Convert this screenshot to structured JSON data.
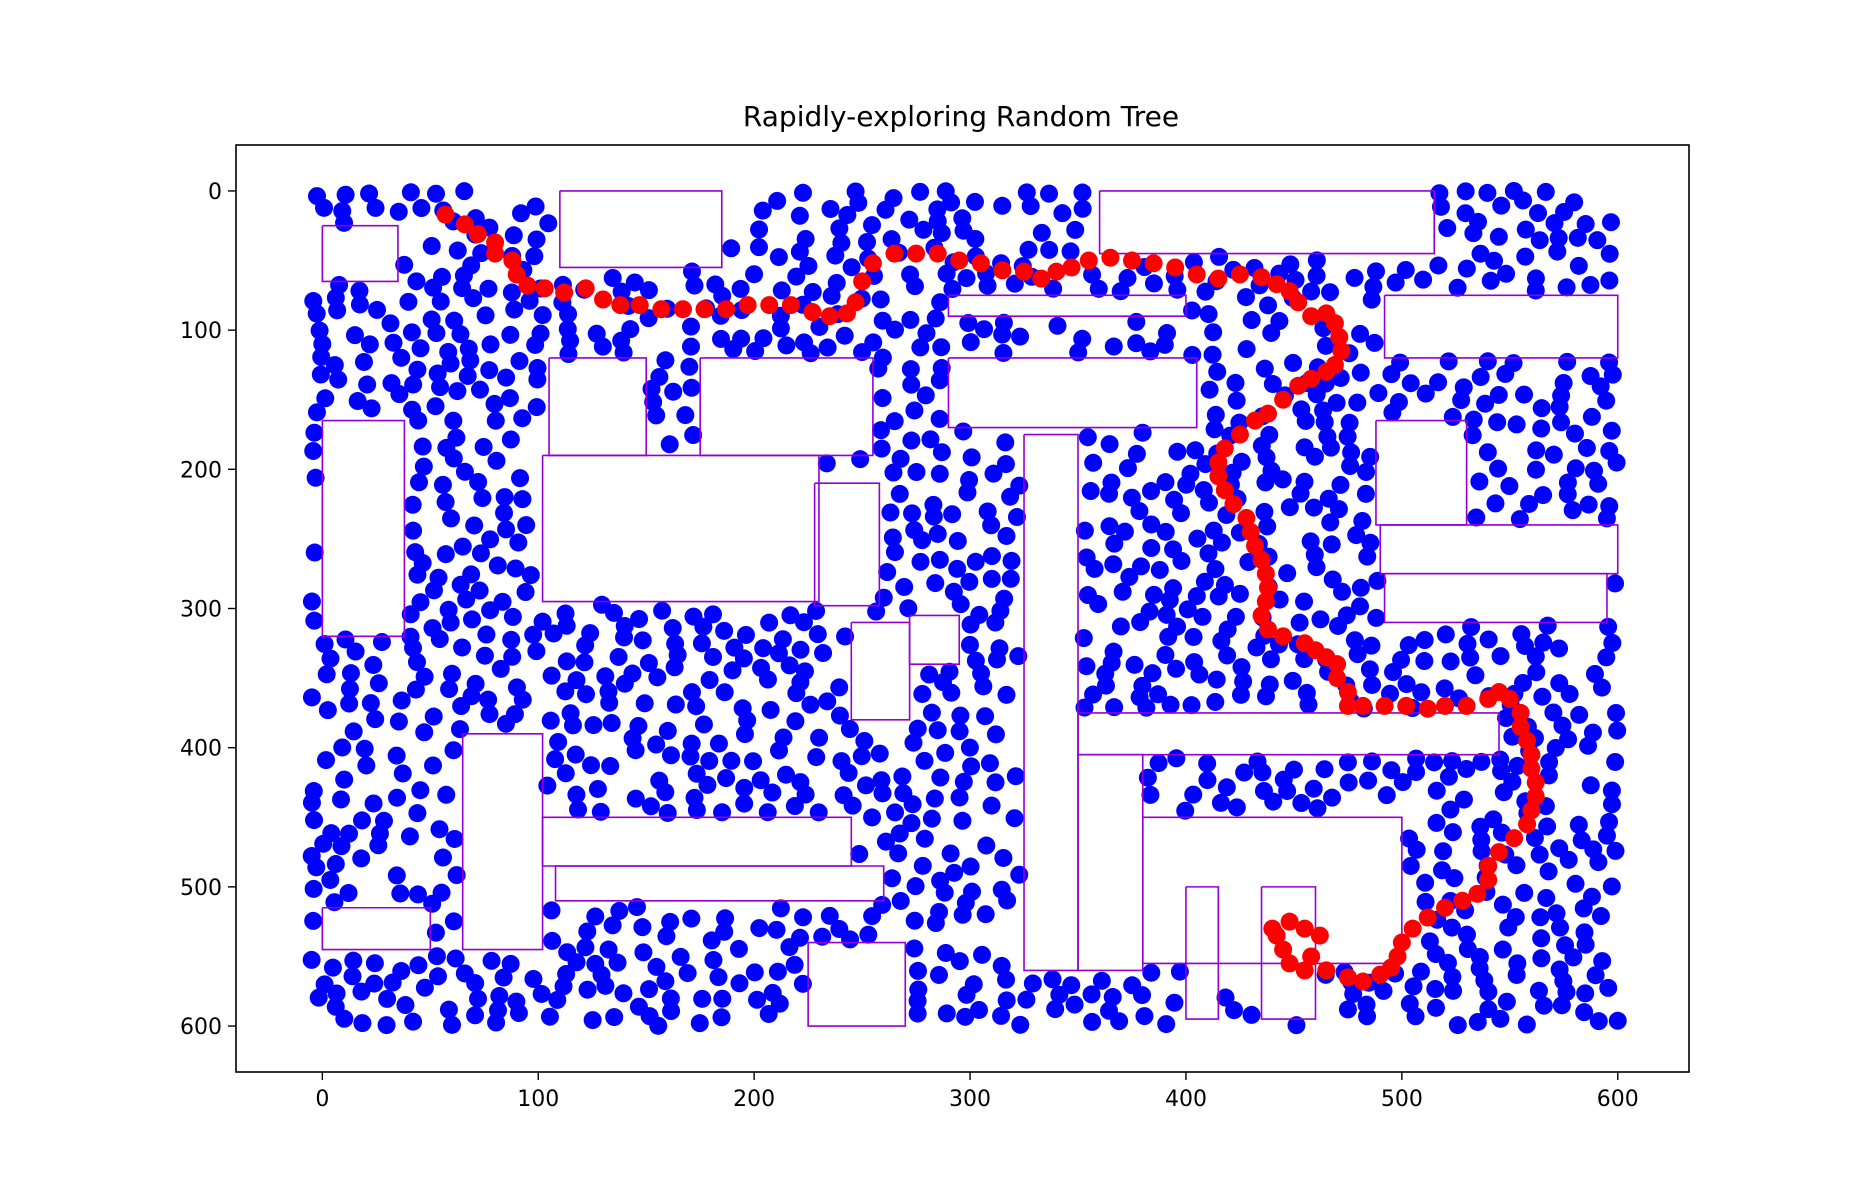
{
  "chart_data": {
    "type": "scatter",
    "title": "Rapidly-exploring Random Tree",
    "xlabel": "",
    "ylabel": "",
    "xlim": [
      -40,
      633
    ],
    "ylim": [
      633,
      -33
    ],
    "y_inverted": true,
    "grid": false,
    "x_ticks": [
      0,
      100,
      200,
      300,
      400,
      500,
      600
    ],
    "y_ticks": [
      0,
      100,
      200,
      300,
      400,
      500,
      600
    ],
    "colors": {
      "tree": "#0000ff",
      "path": "#ff0000",
      "obstacles": "#9400d3"
    },
    "obstacles": [
      [
        [
          0,
          25
        ],
        [
          35,
          25
        ],
        [
          35,
          65
        ],
        [
          0,
          65
        ],
        [
          0,
          25
        ]
      ],
      [
        [
          0,
          165
        ],
        [
          38,
          165
        ],
        [
          38,
          320
        ],
        [
          0,
          320
        ],
        [
          0,
          165
        ]
      ],
      [
        [
          0,
          515
        ],
        [
          50,
          515
        ],
        [
          50,
          545
        ],
        [
          0,
          545
        ],
        [
          0,
          515
        ]
      ],
      [
        [
          110,
          0
        ],
        [
          185,
          0
        ],
        [
          185,
          55
        ],
        [
          110,
          55
        ],
        [
          110,
          0
        ]
      ],
      [
        [
          105,
          120
        ],
        [
          150,
          120
        ],
        [
          150,
          190
        ],
        [
          105,
          190
        ],
        [
          105,
          120
        ]
      ],
      [
        [
          175,
          120
        ],
        [
          255,
          120
        ],
        [
          255,
          190
        ],
        [
          175,
          190
        ],
        [
          175,
          120
        ]
      ],
      [
        [
          102,
          190
        ],
        [
          230,
          190
        ],
        [
          230,
          295
        ],
        [
          102,
          295
        ],
        [
          102,
          190
        ]
      ],
      [
        [
          228,
          210
        ],
        [
          258,
          210
        ],
        [
          258,
          298
        ],
        [
          228,
          298
        ],
        [
          228,
          210
        ]
      ],
      [
        [
          290,
          120
        ],
        [
          405,
          120
        ],
        [
          405,
          170
        ],
        [
          290,
          170
        ],
        [
          290,
          120
        ]
      ],
      [
        [
          290,
          75
        ],
        [
          400,
          75
        ],
        [
          400,
          90
        ],
        [
          290,
          90
        ],
        [
          290,
          75
        ]
      ],
      [
        [
          360,
          0
        ],
        [
          515,
          0
        ],
        [
          515,
          45
        ],
        [
          360,
          45
        ],
        [
          360,
          0
        ]
      ],
      [
        [
          492,
          75
        ],
        [
          600,
          75
        ],
        [
          600,
          120
        ],
        [
          492,
          120
        ],
        [
          492,
          75
        ]
      ],
      [
        [
          488,
          165
        ],
        [
          530,
          165
        ],
        [
          530,
          240
        ],
        [
          488,
          240
        ],
        [
          488,
          165
        ]
      ],
      [
        [
          490,
          240
        ],
        [
          600,
          240
        ],
        [
          600,
          275
        ],
        [
          490,
          275
        ],
        [
          490,
          240
        ]
      ],
      [
        [
          325,
          175
        ],
        [
          350,
          175
        ],
        [
          350,
          560
        ],
        [
          325,
          560
        ],
        [
          325,
          175
        ]
      ],
      [
        [
          272,
          305
        ],
        [
          295,
          305
        ],
        [
          295,
          340
        ],
        [
          272,
          340
        ],
        [
          272,
          305
        ]
      ],
      [
        [
          350,
          375
        ],
        [
          545,
          375
        ],
        [
          545,
          405
        ],
        [
          350,
          405
        ],
        [
          350,
          375
        ]
      ],
      [
        [
          350,
          405
        ],
        [
          380,
          405
        ],
        [
          380,
          560
        ],
        [
          350,
          560
        ],
        [
          350,
          405
        ]
      ],
      [
        [
          380,
          450
        ],
        [
          500,
          450
        ],
        [
          500,
          555
        ],
        [
          380,
          555
        ],
        [
          380,
          450
        ]
      ],
      [
        [
          400,
          500
        ],
        [
          415,
          500
        ],
        [
          415,
          595
        ],
        [
          400,
          595
        ],
        [
          400,
          500
        ]
      ],
      [
        [
          435,
          500
        ],
        [
          460,
          500
        ],
        [
          460,
          595
        ],
        [
          435,
          595
        ],
        [
          435,
          500
        ]
      ],
      [
        [
          65,
          390
        ],
        [
          102,
          390
        ],
        [
          102,
          545
        ],
        [
          65,
          545
        ],
        [
          65,
          390
        ]
      ],
      [
        [
          102,
          450
        ],
        [
          245,
          450
        ],
        [
          245,
          485
        ],
        [
          102,
          485
        ],
        [
          102,
          450
        ]
      ],
      [
        [
          108,
          485
        ],
        [
          260,
          485
        ],
        [
          260,
          510
        ],
        [
          108,
          510
        ],
        [
          108,
          485
        ]
      ],
      [
        [
          225,
          540
        ],
        [
          270,
          540
        ],
        [
          270,
          600
        ],
        [
          225,
          600
        ],
        [
          225,
          540
        ]
      ],
      [
        [
          245,
          310
        ],
        [
          272,
          310
        ],
        [
          272,
          380
        ],
        [
          245,
          380
        ],
        [
          245,
          310
        ]
      ],
      [
        [
          492,
          275
        ],
        [
          595,
          275
        ],
        [
          595,
          310
        ],
        [
          492,
          310
        ],
        [
          492,
          275
        ]
      ]
    ],
    "path": [
      [
        57,
        17
      ],
      [
        66,
        24
      ],
      [
        72,
        31
      ],
      [
        80,
        37
      ],
      [
        80,
        45
      ],
      [
        88,
        50
      ],
      [
        90,
        60
      ],
      [
        95,
        68
      ],
      [
        103,
        70
      ],
      [
        112,
        73
      ],
      [
        122,
        70
      ],
      [
        130,
        78
      ],
      [
        138,
        82
      ],
      [
        147,
        82
      ],
      [
        157,
        85
      ],
      [
        167,
        85
      ],
      [
        177,
        85
      ],
      [
        187,
        85
      ],
      [
        197,
        82
      ],
      [
        207,
        82
      ],
      [
        217,
        82
      ],
      [
        227,
        87
      ],
      [
        235,
        90
      ],
      [
        243,
        88
      ],
      [
        247,
        80
      ],
      [
        250,
        65
      ],
      [
        255,
        52
      ],
      [
        265,
        45
      ],
      [
        275,
        45
      ],
      [
        285,
        45
      ],
      [
        295,
        50
      ],
      [
        305,
        52
      ],
      [
        315,
        57
      ],
      [
        325,
        58
      ],
      [
        333,
        63
      ],
      [
        340,
        58
      ],
      [
        347,
        55
      ],
      [
        355,
        50
      ],
      [
        365,
        48
      ],
      [
        375,
        50
      ],
      [
        385,
        52
      ],
      [
        395,
        55
      ],
      [
        405,
        60
      ],
      [
        415,
        63
      ],
      [
        425,
        60
      ],
      [
        435,
        62
      ],
      [
        442,
        67
      ],
      [
        448,
        72
      ],
      [
        452,
        80
      ],
      [
        458,
        90
      ],
      [
        465,
        88
      ],
      [
        469,
        95
      ],
      [
        471,
        105
      ],
      [
        472,
        115
      ],
      [
        469,
        125
      ],
      [
        465,
        130
      ],
      [
        458,
        135
      ],
      [
        452,
        140
      ],
      [
        445,
        150
      ],
      [
        438,
        160
      ],
      [
        432,
        165
      ],
      [
        425,
        175
      ],
      [
        418,
        185
      ],
      [
        415,
        195
      ],
      [
        415,
        205
      ],
      [
        418,
        215
      ],
      [
        422,
        225
      ],
      [
        428,
        235
      ],
      [
        430,
        245
      ],
      [
        432,
        255
      ],
      [
        435,
        265
      ],
      [
        437,
        275
      ],
      [
        438,
        285
      ],
      [
        437,
        295
      ],
      [
        435,
        305
      ],
      [
        438,
        315
      ],
      [
        445,
        320
      ],
      [
        455,
        325
      ],
      [
        460,
        330
      ],
      [
        465,
        335
      ],
      [
        470,
        340
      ],
      [
        470,
        350
      ],
      [
        475,
        360
      ],
      [
        475,
        370
      ],
      [
        482,
        370
      ],
      [
        492,
        370
      ],
      [
        502,
        370
      ],
      [
        512,
        372
      ],
      [
        520,
        370
      ],
      [
        530,
        370
      ],
      [
        540,
        365
      ],
      [
        545,
        360
      ],
      [
        550,
        365
      ],
      [
        555,
        375
      ],
      [
        555,
        385
      ],
      [
        558,
        395
      ],
      [
        560,
        405
      ],
      [
        560,
        415
      ],
      [
        562,
        425
      ],
      [
        562,
        435
      ],
      [
        560,
        445
      ],
      [
        558,
        455
      ],
      [
        552,
        465
      ],
      [
        545,
        475
      ],
      [
        540,
        485
      ],
      [
        540,
        495
      ],
      [
        535,
        505
      ],
      [
        528,
        510
      ],
      [
        520,
        515
      ],
      [
        512,
        522
      ],
      [
        505,
        530
      ],
      [
        500,
        540
      ],
      [
        498,
        550
      ],
      [
        495,
        558
      ],
      [
        490,
        563
      ],
      [
        482,
        568
      ],
      [
        475,
        565
      ],
      [
        465,
        560
      ],
      [
        455,
        560
      ],
      [
        448,
        555
      ],
      [
        445,
        545
      ],
      [
        442,
        535
      ],
      [
        440,
        530
      ],
      [
        448,
        525
      ],
      [
        455,
        530
      ],
      [
        462,
        535
      ],
      [
        458,
        550
      ]
    ],
    "tree_node_count_estimate": 1400
  }
}
